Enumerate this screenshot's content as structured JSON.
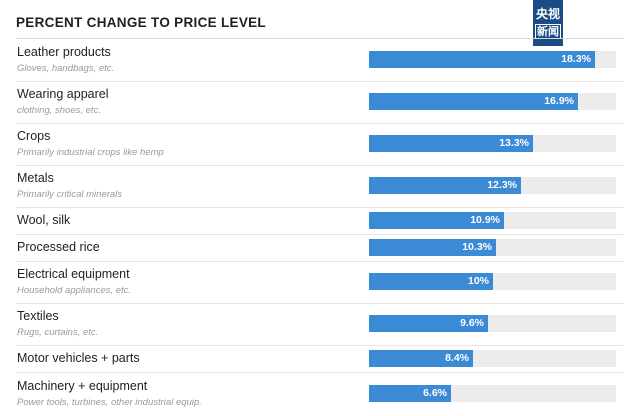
{
  "title": "PERCENT CHANGE TO PRICE LEVEL",
  "logo": {
    "line1": "央视",
    "line2": "新闻"
  },
  "colors": {
    "bar": "#3a8ad6",
    "track": "#ececec"
  },
  "chart_data": {
    "type": "bar",
    "orientation": "horizontal",
    "title": "PERCENT CHANGE TO PRICE LEVEL",
    "xlim": [
      0,
      20
    ],
    "grid": false,
    "categories": [
      "Leather products",
      "Wearing apparel",
      "Crops",
      "Metals",
      "Wool, silk",
      "Processed rice",
      "Electrical equipment",
      "Textiles",
      "Motor vehicles + parts",
      "Machinery + equipment"
    ],
    "subtitles": [
      "Gloves, handbags, etc.",
      "clothing, shoes, etc.",
      "Primarily industrial crops like hemp",
      "Primarily critical minerals",
      "",
      "",
      "Household appliances, etc.",
      "Rugs, curtains, etc.",
      "",
      "Power tools, turbines, other industrial equip."
    ],
    "values": [
      18.3,
      16.9,
      13.3,
      12.3,
      10.9,
      10.3,
      10,
      9.6,
      8.4,
      6.6
    ],
    "value_labels": [
      "18.3%",
      "16.9%",
      "13.3%",
      "12.3%",
      "10.9%",
      "10.3%",
      "10%",
      "9.6%",
      "8.4%",
      "6.6%"
    ]
  }
}
